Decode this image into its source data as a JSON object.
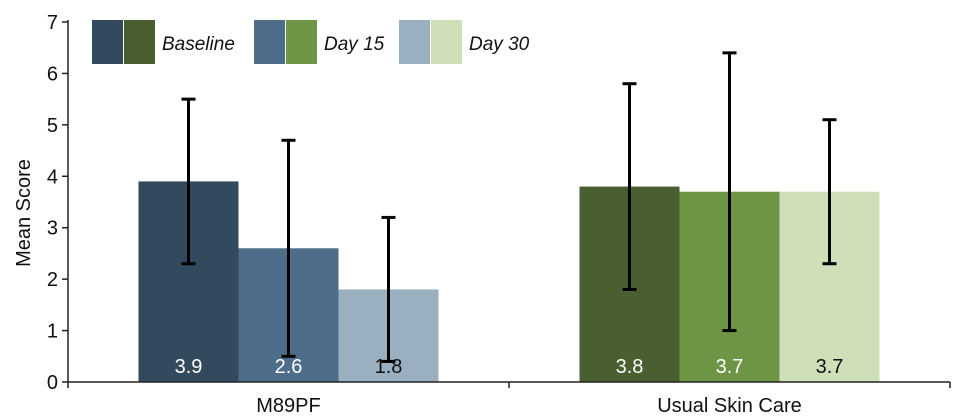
{
  "chart_data": {
    "type": "bar",
    "ylabel": "Mean Score",
    "ylim": [
      0,
      7
    ],
    "yticks": [
      0,
      1,
      2,
      3,
      4,
      5,
      6,
      7
    ],
    "grid": false,
    "legend_position": "top-left",
    "legend": [
      {
        "label": "Baseline",
        "colors": [
          "#33495e",
          "#4a5f30"
        ]
      },
      {
        "label": "Day 15",
        "colors": [
          "#4d6d8a",
          "#6e9445"
        ]
      },
      {
        "label": "Day 30",
        "colors": [
          "#9aafc0",
          "#cfe0b9"
        ]
      }
    ],
    "groups": [
      {
        "category": "M89PF",
        "bars": [
          {
            "series": "Baseline",
            "value": 3.9,
            "label": "3.9",
            "err_low": 2.3,
            "err_high": 5.5,
            "color": "#33495e",
            "label_color": "#ffffff"
          },
          {
            "series": "Day 15",
            "value": 2.6,
            "label": "2.6",
            "err_low": 0.5,
            "err_high": 4.7,
            "color": "#4d6d8a",
            "label_color": "#ffffff"
          },
          {
            "series": "Day 30",
            "value": 1.8,
            "label": "1.8",
            "err_low": 0.4,
            "err_high": 3.2,
            "color": "#9aafc0",
            "label_color": "#111111"
          }
        ]
      },
      {
        "category": "Usual Skin Care",
        "bars": [
          {
            "series": "Baseline",
            "value": 3.8,
            "label": "3.8",
            "err_low": 1.8,
            "err_high": 5.8,
            "color": "#4a5f30",
            "label_color": "#ffffff"
          },
          {
            "series": "Day 15",
            "value": 3.7,
            "label": "3.7",
            "err_low": 1.0,
            "err_high": 6.4,
            "color": "#6e9445",
            "label_color": "#ffffff"
          },
          {
            "series": "Day 30",
            "value": 3.7,
            "label": "3.7",
            "err_low": 2.3,
            "err_high": 5.1,
            "color": "#cfe0b9",
            "label_color": "#111111"
          }
        ]
      }
    ]
  }
}
